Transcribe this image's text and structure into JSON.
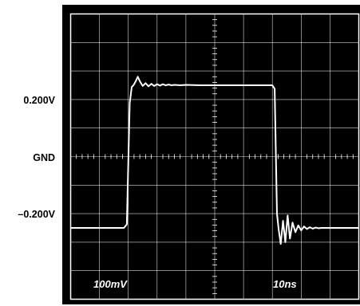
{
  "chart_data": {
    "type": "line",
    "title": "",
    "xlabel": "",
    "ylabel": "",
    "y_ticks": [
      "0.200V",
      "GND",
      "–0.200V"
    ],
    "y_tick_values": [
      0.2,
      0.0,
      -0.2
    ],
    "vertical_scale": "100mV",
    "horizontal_scale": "10ns",
    "xlim": [
      0,
      100
    ],
    "ylim": [
      -0.4,
      0.4
    ],
    "grid": true,
    "background": "#000000",
    "trace_color": "#ffffff",
    "series": [
      {
        "values_x": [
          0,
          18.5,
          19.5,
          20.5,
          21.2,
          21.8,
          22.5,
          23.3,
          24.1,
          25,
          26,
          27,
          28,
          29,
          30,
          31,
          32,
          33,
          34,
          35,
          36,
          38,
          40,
          45,
          50,
          55,
          60,
          65,
          70,
          70.8,
          71.6,
          72.2,
          72.9,
          73.7,
          74.5,
          75.3,
          76.1,
          77,
          78,
          79,
          80,
          81,
          82,
          83,
          84,
          85,
          86,
          87,
          88,
          90,
          95,
          100
        ],
        "values_y": [
          -0.2,
          -0.2,
          -0.19,
          0.15,
          0.195,
          0.2,
          0.21,
          0.224,
          0.21,
          0.198,
          0.206,
          0.197,
          0.204,
          0.198,
          0.203,
          0.199,
          0.203,
          0.2,
          0.202,
          0.2,
          0.201,
          0.2,
          0.201,
          0.2,
          0.2,
          0.2,
          0.2,
          0.2,
          0.2,
          0.19,
          -0.16,
          -0.205,
          -0.245,
          -0.18,
          -0.24,
          -0.165,
          -0.23,
          -0.185,
          -0.212,
          -0.193,
          -0.207,
          -0.196,
          -0.203,
          -0.198,
          -0.202,
          -0.199,
          -0.201,
          -0.2,
          -0.2,
          -0.2,
          -0.2,
          -0.2
        ]
      }
    ]
  }
}
